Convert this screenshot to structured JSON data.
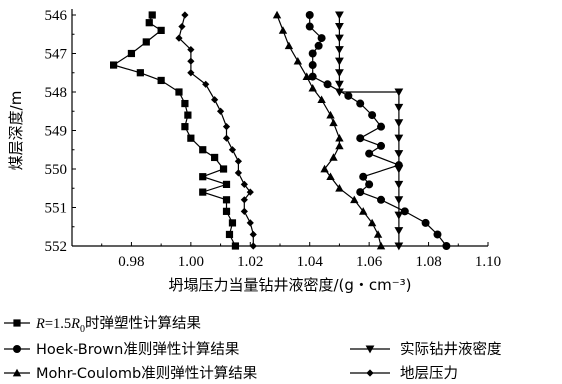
{
  "chart_data": {
    "type": "line",
    "orientation": "depth-profile",
    "xlabel": "坍塌压力当量钻井液密度/(g・cm⁻³)",
    "ylabel": "煤层深度/m",
    "xlim": [
      0.96,
      1.1
    ],
    "ylim": [
      546,
      552
    ],
    "y_inverted": true,
    "x_ticks": [
      "0.98",
      "1.00",
      "1.02",
      "1.04",
      "1.06",
      "1.08",
      "1.10"
    ],
    "y_ticks": [
      "546",
      "547",
      "548",
      "549",
      "550",
      "551",
      "552"
    ],
    "legend_placement": "bottom",
    "series": [
      {
        "name": "R=1.5R0时弹塑性计算结果",
        "marker": "square",
        "points": [
          [
            0.987,
            546.0
          ],
          [
            0.986,
            546.2
          ],
          [
            0.99,
            546.4
          ],
          [
            0.985,
            546.7
          ],
          [
            0.98,
            547.0
          ],
          [
            0.974,
            547.3
          ],
          [
            0.983,
            547.5
          ],
          [
            0.99,
            547.7
          ],
          [
            0.996,
            548.0
          ],
          [
            0.998,
            548.3
          ],
          [
            0.999,
            548.6
          ],
          [
            0.998,
            548.9
          ],
          [
            1.0,
            549.2
          ],
          [
            1.004,
            549.5
          ],
          [
            1.008,
            549.7
          ],
          [
            1.011,
            550.0
          ],
          [
            1.004,
            550.2
          ],
          [
            1.012,
            550.4
          ],
          [
            1.004,
            550.6
          ],
          [
            1.012,
            550.8
          ],
          [
            1.012,
            551.1
          ],
          [
            1.014,
            551.4
          ],
          [
            1.013,
            551.7
          ],
          [
            1.015,
            552.0
          ]
        ]
      },
      {
        "name": "Hoek-Brown准则弹性计算结果",
        "marker": "circle",
        "points": [
          [
            1.04,
            546.0
          ],
          [
            1.04,
            546.3
          ],
          [
            1.044,
            546.6
          ],
          [
            1.043,
            546.8
          ],
          [
            1.041,
            547.0
          ],
          [
            1.041,
            547.3
          ],
          [
            1.041,
            547.6
          ],
          [
            1.046,
            547.8
          ],
          [
            1.053,
            548.1
          ],
          [
            1.057,
            548.3
          ],
          [
            1.061,
            548.6
          ],
          [
            1.064,
            548.9
          ],
          [
            1.057,
            549.2
          ],
          [
            1.064,
            549.4
          ],
          [
            1.06,
            549.6
          ],
          [
            1.07,
            549.9
          ],
          [
            1.058,
            550.2
          ],
          [
            1.06,
            550.4
          ],
          [
            1.057,
            550.6
          ],
          [
            1.064,
            550.8
          ],
          [
            1.072,
            551.1
          ],
          [
            1.079,
            551.4
          ],
          [
            1.083,
            551.7
          ],
          [
            1.086,
            552.0
          ]
        ]
      },
      {
        "name": "Mohr-Coulomb准则弹性计算结果",
        "marker": "triangle-up",
        "points": [
          [
            1.029,
            546.0
          ],
          [
            1.031,
            546.4
          ],
          [
            1.033,
            546.8
          ],
          [
            1.036,
            547.2
          ],
          [
            1.039,
            547.6
          ],
          [
            1.041,
            547.9
          ],
          [
            1.044,
            548.2
          ],
          [
            1.047,
            548.6
          ],
          [
            1.048,
            548.8
          ],
          [
            1.05,
            549.2
          ],
          [
            1.05,
            549.4
          ],
          [
            1.048,
            549.7
          ],
          [
            1.045,
            550.0
          ],
          [
            1.047,
            550.2
          ],
          [
            1.05,
            550.5
          ],
          [
            1.055,
            550.8
          ],
          [
            1.058,
            551.1
          ],
          [
            1.061,
            551.4
          ],
          [
            1.063,
            551.7
          ],
          [
            1.064,
            552.0
          ]
        ]
      },
      {
        "name": "实际钻井液密度",
        "marker": "triangle-down",
        "points": [
          [
            1.05,
            546.0
          ],
          [
            1.05,
            546.3
          ],
          [
            1.05,
            546.6
          ],
          [
            1.05,
            546.9
          ],
          [
            1.05,
            547.2
          ],
          [
            1.05,
            547.5
          ],
          [
            1.05,
            547.8
          ],
          [
            1.05,
            548.0
          ],
          [
            1.07,
            548.0
          ],
          [
            1.07,
            548.4
          ],
          [
            1.07,
            548.8
          ],
          [
            1.07,
            549.2
          ],
          [
            1.07,
            549.6
          ],
          [
            1.07,
            550.0
          ],
          [
            1.07,
            550.4
          ],
          [
            1.07,
            550.8
          ],
          [
            1.07,
            551.2
          ],
          [
            1.07,
            551.6
          ],
          [
            1.07,
            552.0
          ]
        ]
      },
      {
        "name": "地层压力",
        "marker": "diamond",
        "points": [
          [
            0.998,
            546.0
          ],
          [
            0.997,
            546.3
          ],
          [
            0.996,
            546.6
          ],
          [
            1.0,
            546.9
          ],
          [
            1.0,
            547.2
          ],
          [
            1.0,
            547.5
          ],
          [
            1.005,
            547.8
          ],
          [
            1.008,
            548.2
          ],
          [
            1.01,
            548.5
          ],
          [
            1.012,
            548.9
          ],
          [
            1.012,
            549.2
          ],
          [
            1.014,
            549.5
          ],
          [
            1.016,
            549.8
          ],
          [
            1.016,
            550.1
          ],
          [
            1.018,
            550.4
          ],
          [
            1.02,
            550.6
          ],
          [
            1.018,
            550.8
          ],
          [
            1.018,
            551.1
          ],
          [
            1.02,
            551.4
          ],
          [
            1.021,
            551.7
          ],
          [
            1.021,
            552.0
          ]
        ]
      }
    ]
  }
}
